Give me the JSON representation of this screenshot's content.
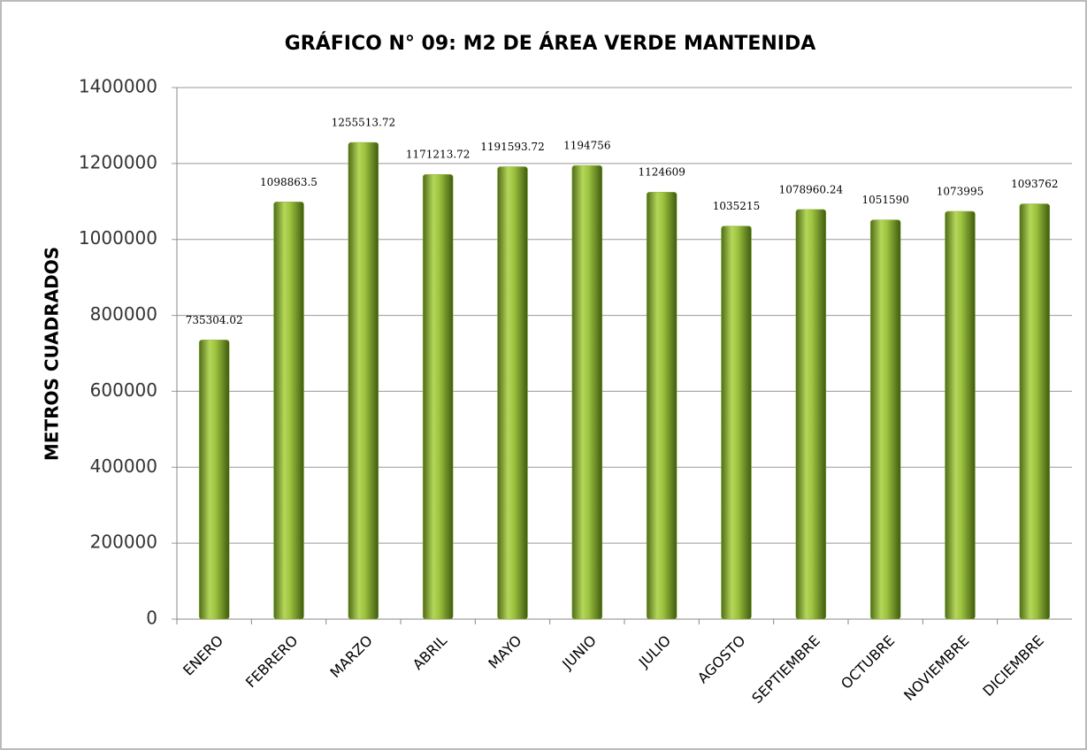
{
  "chart_data": {
    "type": "bar",
    "title": "GRÁFICO N° 09: M2 DE ÁREA VERDE MANTENIDA",
    "y_label": "METROS CUADRADOS",
    "categories": [
      "ENERO",
      "FEBRERO",
      "MARZO",
      "ABRIL",
      "MAYO",
      "JUNIO",
      "JULIO",
      "AGOSTO",
      "SEPTIEMBRE",
      "OCTUBRE",
      "NOVIEMBRE",
      "DICIEMBRE"
    ],
    "values": [
      735304.02,
      1098863.5,
      1255513.72,
      1171213.72,
      1191593.72,
      1194756,
      1124609,
      1035215,
      1078960.24,
      1051590,
      1073995,
      1093762
    ],
    "color": "#8db33a",
    "ylim": [
      0,
      1400000
    ],
    "yticks": [
      0,
      200000,
      400000,
      600000,
      800000,
      1000000,
      1200000,
      1400000
    ],
    "grid": true
  }
}
